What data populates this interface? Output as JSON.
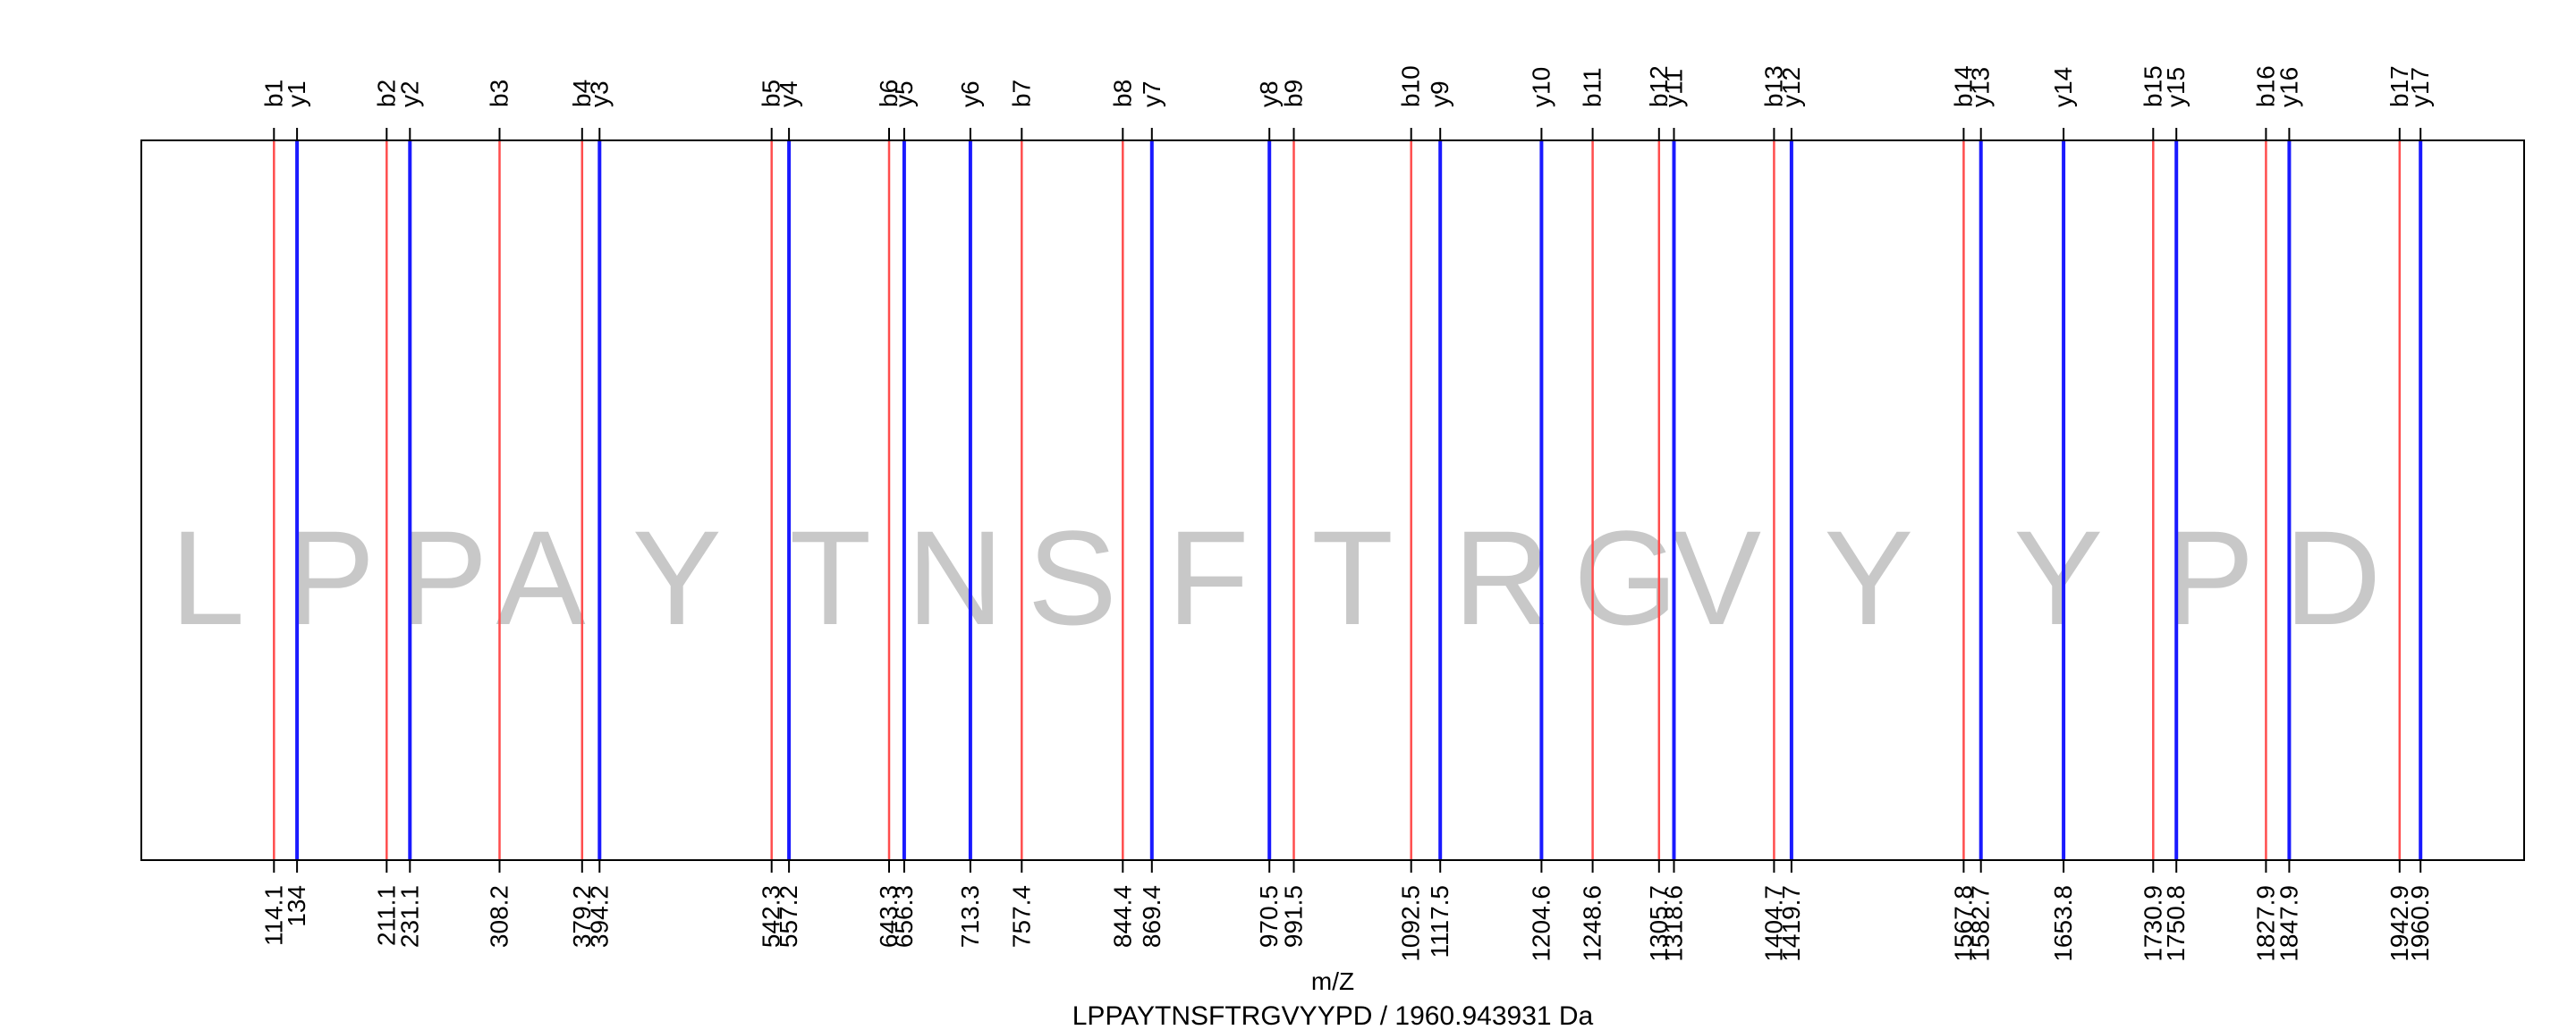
{
  "chart_data": {
    "type": "spectrum-fragment-ladder",
    "xlabel": "m/Z",
    "caption": "LPPAYTNSFTRGVYYPD / 1960.943931 Da",
    "xlim": [
      0,
      2050
    ],
    "colors": {
      "b": "#ff4d4d",
      "y": "#1a1aff",
      "residue": "#c8c8c8",
      "frame": "#000000"
    },
    "b_ions": [
      {
        "label": "b1",
        "mz": 114.1,
        "mz_label": "114.1"
      },
      {
        "label": "b2",
        "mz": 211.1,
        "mz_label": "211.1"
      },
      {
        "label": "b3",
        "mz": 308.2,
        "mz_label": "308.2"
      },
      {
        "label": "b4",
        "mz": 379.2,
        "mz_label": "379.2"
      },
      {
        "label": "b5",
        "mz": 542.3,
        "mz_label": "542.3"
      },
      {
        "label": "b6",
        "mz": 643.3,
        "mz_label": "643.3"
      },
      {
        "label": "b7",
        "mz": 757.4,
        "mz_label": "757.4"
      },
      {
        "label": "b8",
        "mz": 844.4,
        "mz_label": "844.4"
      },
      {
        "label": "b9",
        "mz": 991.5,
        "mz_label": "991.5"
      },
      {
        "label": "b10",
        "mz": 1092.5,
        "mz_label": "1092.5"
      },
      {
        "label": "b11",
        "mz": 1248.6,
        "mz_label": "1248.6"
      },
      {
        "label": "b12",
        "mz": 1305.7,
        "mz_label": "1305.7"
      },
      {
        "label": "b13",
        "mz": 1404.7,
        "mz_label": "1404.7"
      },
      {
        "label": "b14",
        "mz": 1567.8,
        "mz_label": "1567.8"
      },
      {
        "label": "b15",
        "mz": 1730.9,
        "mz_label": "1730.9"
      },
      {
        "label": "b16",
        "mz": 1827.9,
        "mz_label": "1827.9"
      },
      {
        "label": "b17",
        "mz": 1942.9,
        "mz_label": "1942.9"
      }
    ],
    "y_ions": [
      {
        "label": "y1",
        "mz": 134.0,
        "mz_label": "134"
      },
      {
        "label": "y2",
        "mz": 231.1,
        "mz_label": "231.1"
      },
      {
        "label": "y3",
        "mz": 394.2,
        "mz_label": "394.2"
      },
      {
        "label": "y4",
        "mz": 557.2,
        "mz_label": "557.2"
      },
      {
        "label": "y5",
        "mz": 656.3,
        "mz_label": "656.3"
      },
      {
        "label": "y6",
        "mz": 713.3,
        "mz_label": "713.3"
      },
      {
        "label": "y7",
        "mz": 869.4,
        "mz_label": "869.4"
      },
      {
        "label": "y8",
        "mz": 970.5,
        "mz_label": "970.5"
      },
      {
        "label": "y9",
        "mz": 1117.5,
        "mz_label": "1117.5"
      },
      {
        "label": "y10",
        "mz": 1204.6,
        "mz_label": "1204.6"
      },
      {
        "label": "y11",
        "mz": 1318.6,
        "mz_label": "1318.6"
      },
      {
        "label": "y12",
        "mz": 1419.7,
        "mz_label": "1419.7"
      },
      {
        "label": "y13",
        "mz": 1582.7,
        "mz_label": "1582.7"
      },
      {
        "label": "y14",
        "mz": 1653.8,
        "mz_label": "1653.8"
      },
      {
        "label": "y15",
        "mz": 1750.8,
        "mz_label": "1750.8"
      },
      {
        "label": "y16",
        "mz": 1847.9,
        "mz_label": "1847.9"
      },
      {
        "label": "y17",
        "mz": 1960.9,
        "mz_label": "1960.9"
      }
    ],
    "residues": [
      {
        "letter": "L",
        "mz": 57.0
      },
      {
        "letter": "P",
        "mz": 162.6
      },
      {
        "letter": "P",
        "mz": 259.6
      },
      {
        "letter": "A",
        "mz": 343.7
      },
      {
        "letter": "Y",
        "mz": 460.8
      },
      {
        "letter": "T",
        "mz": 592.8
      },
      {
        "letter": "N",
        "mz": 700.3
      },
      {
        "letter": "S",
        "mz": 800.9
      },
      {
        "letter": "F",
        "mz": 917.9
      },
      {
        "letter": "T",
        "mz": 1042.0
      },
      {
        "letter": "R",
        "mz": 1170.5
      },
      {
        "letter": "G",
        "mz": 1277.1
      },
      {
        "letter": "V",
        "mz": 1355.2
      },
      {
        "letter": "Y",
        "mz": 1486.2
      },
      {
        "letter": "Y",
        "mz": 1649.3
      },
      {
        "letter": "P",
        "mz": 1779.4
      },
      {
        "letter": "D",
        "mz": 1885.4
      }
    ]
  }
}
